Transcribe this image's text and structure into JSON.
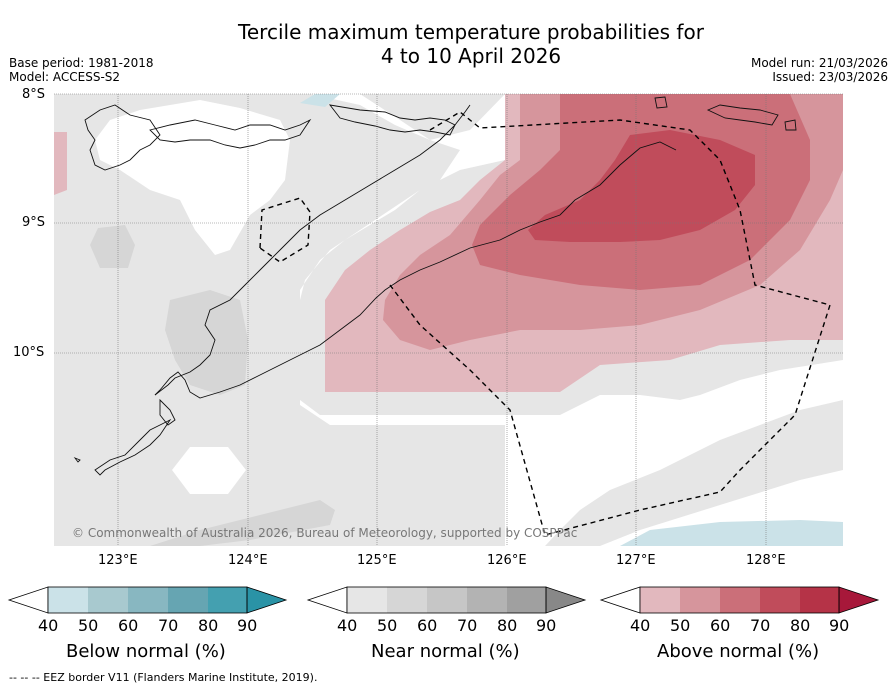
{
  "title": {
    "line1": "Tercile maximum temperature probabilities for",
    "line2": "4 to 10 April 2026"
  },
  "meta": {
    "base_period": "Base period: 1981-2018",
    "model": "Model: ACCESS-S2",
    "model_run": "Model run: 21/03/2026",
    "issued": "Issued: 23/03/2026"
  },
  "map": {
    "lat_labels": [
      "8°S",
      "9°S",
      "10°S"
    ],
    "lon_labels": [
      "123°E",
      "124°E",
      "125°E",
      "126°E",
      "127°E",
      "128°E"
    ],
    "copyright": "© Commonwealth of Australia 2026, Bureau of Meteorology, supported by COSPPac"
  },
  "colorbars": [
    {
      "label": "Below normal (%)",
      "ticks": [
        "40",
        "50",
        "60",
        "70",
        "80",
        "90"
      ],
      "colors": [
        "#ffffff",
        "#cbe2e8",
        "#a8c9cf",
        "#88b7c1",
        "#66a5b2",
        "#44a0b0",
        "#2a93a6"
      ]
    },
    {
      "label": "Near normal (%)",
      "ticks": [
        "40",
        "50",
        "60",
        "70",
        "80",
        "90"
      ],
      "colors": [
        "#ffffff",
        "#e6e6e6",
        "#d6d6d6",
        "#c6c6c6",
        "#b3b3b3",
        "#a0a0a0",
        "#888888"
      ]
    },
    {
      "label": "Above normal (%)",
      "ticks": [
        "40",
        "50",
        "60",
        "70",
        "80",
        "90"
      ],
      "colors": [
        "#ffffff",
        "#e2b8be",
        "#d6959c",
        "#cb6f79",
        "#c04c5b",
        "#b53347",
        "#a7183a"
      ]
    }
  ],
  "footer": "--  --  -- EEZ border V11 (Flanders Marine Institute, 2019)."
}
